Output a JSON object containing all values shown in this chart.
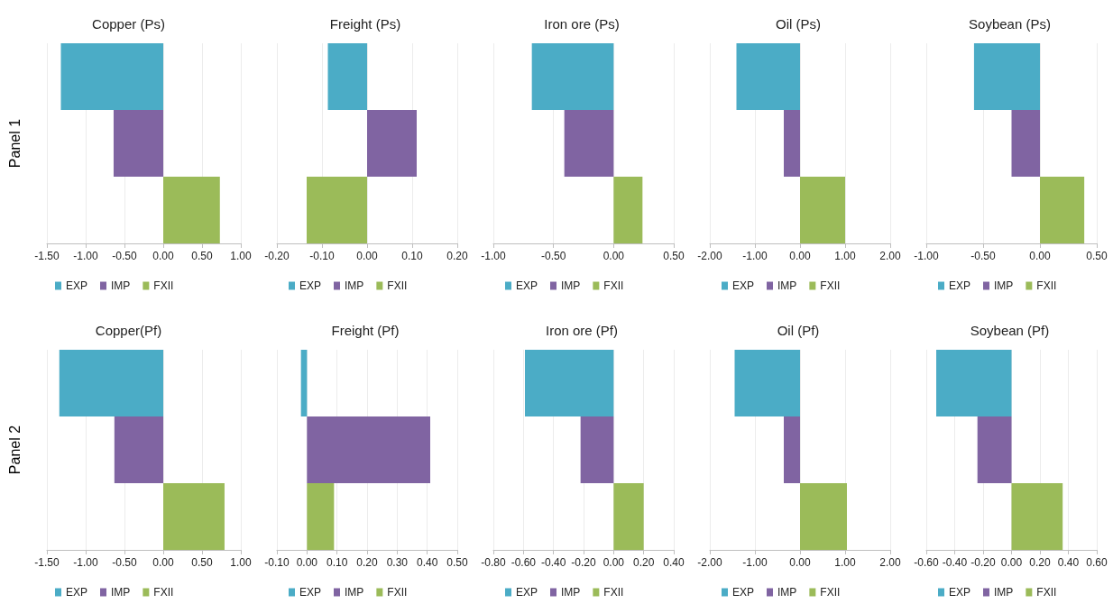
{
  "chart_data": [
    {
      "type": "bar",
      "orientation": "horizontal",
      "stacked": true,
      "title": "Copper (Ps)",
      "ylabel": "Panel 1",
      "categories": [
        null,
        null,
        null
      ],
      "xlim": [
        -1.5,
        1.0
      ],
      "xticks": [
        {
          "value": -1.5,
          "label": "-1.50"
        },
        {
          "value": -1,
          "label": "-1.00"
        },
        {
          "value": -0.5,
          "label": "-0.50"
        },
        {
          "value": 0,
          "label": "0.00"
        },
        {
          "value": 0.5,
          "label": "0.50"
        },
        {
          "value": 1,
          "label": "1.00"
        }
      ],
      "grid": "x",
      "legend": "bottom left",
      "tick_labels": "x",
      "series": [
        {
          "name": "EXP",
          "color": "#4bacc6",
          "values": [
            -1.32,
            null,
            null
          ]
        },
        {
          "name": "IMP",
          "color": "#8064a2",
          "values": [
            null,
            -0.64,
            null
          ]
        },
        {
          "name": "FXII",
          "color": "#9bbb59",
          "values": [
            null,
            null,
            0.73
          ]
        }
      ]
    },
    {
      "type": "bar",
      "orientation": "horizontal",
      "stacked": true,
      "title": "Freight (Ps)",
      "categories": [
        null,
        null,
        null
      ],
      "xlim": [
        -0.2,
        0.2
      ],
      "xticks": [
        {
          "value": -0.2,
          "label": "-0.20"
        },
        {
          "value": -0.1,
          "label": "-0.10"
        },
        {
          "value": 0,
          "label": "0.00"
        },
        {
          "value": 0.1,
          "label": "0.10"
        },
        {
          "value": 0.2,
          "label": "0.20"
        }
      ],
      "grid": "x",
      "legend": "bottom left",
      "tick_labels": "x",
      "series": [
        {
          "name": "EXP",
          "color": "#4bacc6",
          "values": [
            -0.087,
            null,
            null
          ]
        },
        {
          "name": "IMP",
          "color": "#8064a2",
          "values": [
            null,
            0.11,
            null
          ]
        },
        {
          "name": "FXII",
          "color": "#9bbb59",
          "values": [
            null,
            null,
            -0.134
          ]
        }
      ]
    },
    {
      "type": "bar",
      "orientation": "horizontal",
      "stacked": true,
      "title": "Iron ore (Ps)",
      "categories": [
        null,
        null,
        null
      ],
      "xlim": [
        -1.0,
        0.5
      ],
      "xticks": [
        {
          "value": -1,
          "label": "-1.00"
        },
        {
          "value": -0.5,
          "label": "-0.50"
        },
        {
          "value": 0,
          "label": "0.00"
        },
        {
          "value": 0.5,
          "label": "0.50"
        }
      ],
      "grid": "x",
      "legend": "bottom left",
      "tick_labels": "x",
      "series": [
        {
          "name": "EXP",
          "color": "#4bacc6",
          "values": [
            -0.68,
            null,
            null
          ]
        },
        {
          "name": "IMP",
          "color": "#8064a2",
          "values": [
            null,
            -0.41,
            null
          ]
        },
        {
          "name": "FXII",
          "color": "#9bbb59",
          "values": [
            null,
            null,
            0.24
          ]
        }
      ]
    },
    {
      "type": "bar",
      "orientation": "horizontal",
      "stacked": true,
      "title": "Oil (Ps)",
      "categories": [
        null,
        null,
        null
      ],
      "xlim": [
        -2.0,
        2.0
      ],
      "xticks": [
        {
          "value": -2,
          "label": "-2.00"
        },
        {
          "value": -1,
          "label": "-1.00"
        },
        {
          "value": 0,
          "label": "0.00"
        },
        {
          "value": 1,
          "label": "1.00"
        },
        {
          "value": 2,
          "label": "2.00"
        }
      ],
      "grid": "x",
      "legend": "bottom left",
      "tick_labels": "x",
      "series": [
        {
          "name": "EXP",
          "color": "#4bacc6",
          "values": [
            -1.41,
            null,
            null
          ]
        },
        {
          "name": "IMP",
          "color": "#8064a2",
          "values": [
            null,
            -0.36,
            null
          ]
        },
        {
          "name": "FXII",
          "color": "#9bbb59",
          "values": [
            null,
            null,
            1.0
          ]
        }
      ]
    },
    {
      "type": "bar",
      "orientation": "horizontal",
      "stacked": true,
      "title": "Soybean (Ps)",
      "categories": [
        null,
        null,
        null
      ],
      "xlim": [
        -1.0,
        0.5
      ],
      "xticks": [
        {
          "value": -1,
          "label": "-1.00"
        },
        {
          "value": -0.5,
          "label": "-0.50"
        },
        {
          "value": 0,
          "label": "0.00"
        },
        {
          "value": 0.5,
          "label": "0.50"
        }
      ],
      "grid": "x",
      "legend": "bottom left",
      "tick_labels": "x",
      "series": [
        {
          "name": "EXP",
          "color": "#4bacc6",
          "values": [
            -0.58,
            null,
            null
          ]
        },
        {
          "name": "IMP",
          "color": "#8064a2",
          "values": [
            null,
            -0.25,
            null
          ]
        },
        {
          "name": "FXII",
          "color": "#9bbb59",
          "values": [
            null,
            null,
            0.39
          ]
        }
      ]
    },
    {
      "type": "bar",
      "orientation": "horizontal",
      "stacked": true,
      "title": "Copper(Pf)",
      "ylabel": "Panel 2",
      "categories": [
        null,
        null,
        null
      ],
      "xlim": [
        -1.5,
        1.0
      ],
      "xticks": [
        {
          "value": -1.5,
          "label": "-1.50"
        },
        {
          "value": -1,
          "label": "-1.00"
        },
        {
          "value": -0.5,
          "label": "-0.50"
        },
        {
          "value": 0,
          "label": "0.00"
        },
        {
          "value": 0.5,
          "label": "0.50"
        },
        {
          "value": 1,
          "label": "1.00"
        }
      ],
      "grid": "x",
      "legend": "bottom left",
      "tick_labels": "x",
      "series": [
        {
          "name": "EXP",
          "color": "#4bacc6",
          "values": [
            -1.34,
            null,
            null
          ]
        },
        {
          "name": "IMP",
          "color": "#8064a2",
          "values": [
            null,
            -0.63,
            null
          ]
        },
        {
          "name": "FXII",
          "color": "#9bbb59",
          "values": [
            null,
            null,
            0.79
          ]
        }
      ]
    },
    {
      "type": "bar",
      "orientation": "horizontal",
      "stacked": true,
      "title": "Freight (Pf)",
      "categories": [
        null,
        null,
        null
      ],
      "xlim": [
        -0.1,
        0.5
      ],
      "xticks": [
        {
          "value": -0.1,
          "label": "-0.10"
        },
        {
          "value": 0,
          "label": "0.00"
        },
        {
          "value": 0.1,
          "label": "0.10"
        },
        {
          "value": 0.2,
          "label": "0.20"
        },
        {
          "value": 0.3,
          "label": "0.30"
        },
        {
          "value": 0.4,
          "label": "0.40"
        },
        {
          "value": 0.5,
          "label": "0.50"
        }
      ],
      "grid": "x",
      "legend": "bottom left",
      "tick_labels": "x",
      "series": [
        {
          "name": "EXP",
          "color": "#4bacc6",
          "values": [
            -0.02,
            null,
            null
          ]
        },
        {
          "name": "IMP",
          "color": "#8064a2",
          "values": [
            null,
            0.41,
            null
          ]
        },
        {
          "name": "FXII",
          "color": "#9bbb59",
          "values": [
            null,
            null,
            0.09
          ]
        }
      ]
    },
    {
      "type": "bar",
      "orientation": "horizontal",
      "stacked": true,
      "title": "Iron ore (Pf)",
      "categories": [
        null,
        null,
        null
      ],
      "xlim": [
        -0.8,
        0.4
      ],
      "xticks": [
        {
          "value": -0.8,
          "label": "-0.80"
        },
        {
          "value": -0.6,
          "label": "-0.60"
        },
        {
          "value": -0.4,
          "label": "-0.40"
        },
        {
          "value": -0.2,
          "label": "-0.20"
        },
        {
          "value": 0,
          "label": "0.00"
        },
        {
          "value": 0.2,
          "label": "0.20"
        },
        {
          "value": 0.4,
          "label": "0.40"
        }
      ],
      "grid": "x",
      "legend": "bottom left",
      "tick_labels": "x",
      "series": [
        {
          "name": "EXP",
          "color": "#4bacc6",
          "values": [
            -0.59,
            null,
            null
          ]
        },
        {
          "name": "IMP",
          "color": "#8064a2",
          "values": [
            null,
            -0.22,
            null
          ]
        },
        {
          "name": "FXII",
          "color": "#9bbb59",
          "values": [
            null,
            null,
            0.2
          ]
        }
      ]
    },
    {
      "type": "bar",
      "orientation": "horizontal",
      "stacked": true,
      "title": "Oil (Pf)",
      "categories": [
        null,
        null,
        null
      ],
      "xlim": [
        -2.0,
        2.0
      ],
      "xticks": [
        {
          "value": -2,
          "label": "-2.00"
        },
        {
          "value": -1,
          "label": "-1.00"
        },
        {
          "value": 0,
          "label": "0.00"
        },
        {
          "value": 1,
          "label": "1.00"
        },
        {
          "value": 2,
          "label": "2.00"
        }
      ],
      "grid": "x",
      "legend": "bottom left",
      "tick_labels": "x",
      "series": [
        {
          "name": "EXP",
          "color": "#4bacc6",
          "values": [
            -1.45,
            null,
            null
          ]
        },
        {
          "name": "IMP",
          "color": "#8064a2",
          "values": [
            null,
            -0.36,
            null
          ]
        },
        {
          "name": "FXII",
          "color": "#9bbb59",
          "values": [
            null,
            null,
            1.04
          ]
        }
      ]
    },
    {
      "type": "bar",
      "orientation": "horizontal",
      "stacked": true,
      "title": "Soybean (Pf)",
      "categories": [
        null,
        null,
        null
      ],
      "xlim": [
        -0.6,
        0.6
      ],
      "xticks": [
        {
          "value": -0.6,
          "label": "-0.60"
        },
        {
          "value": -0.4,
          "label": "-0.40"
        },
        {
          "value": -0.2,
          "label": "-0.20"
        },
        {
          "value": 0,
          "label": "0.00"
        },
        {
          "value": 0.2,
          "label": "0.20"
        },
        {
          "value": 0.4,
          "label": "0.40"
        },
        {
          "value": 0.6,
          "label": "0.60"
        }
      ],
      "grid": "x",
      "legend": "bottom left",
      "tick_labels": "x",
      "series": [
        {
          "name": "EXP",
          "color": "#4bacc6",
          "values": [
            -0.53,
            null,
            null
          ]
        },
        {
          "name": "IMP",
          "color": "#8064a2",
          "values": [
            null,
            -0.24,
            null
          ]
        },
        {
          "name": "FXII",
          "color": "#9bbb59",
          "values": [
            null,
            null,
            0.36
          ]
        }
      ]
    }
  ]
}
